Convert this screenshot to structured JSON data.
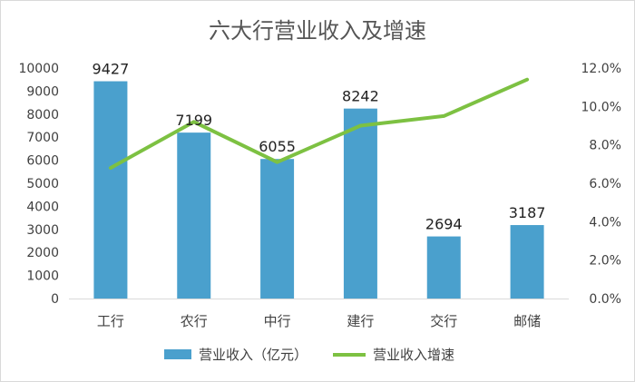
{
  "chart_data": {
    "type": "bar",
    "title": "六大行营业收入及增速",
    "categories": [
      "工行",
      "农行",
      "中行",
      "建行",
      "交行",
      "邮储"
    ],
    "series": [
      {
        "name": "营业收入（亿元）",
        "kind": "bar",
        "axis": "left",
        "color": "#4aa0cd",
        "values": [
          9427,
          7199,
          6055,
          8242,
          2694,
          3187
        ]
      },
      {
        "name": "营业收入增速",
        "kind": "line",
        "axis": "right",
        "color": "#7dc142",
        "values": [
          0.068,
          0.092,
          0.071,
          0.09,
          0.095,
          0.114
        ]
      }
    ],
    "y_left": {
      "min": 0,
      "max": 10000,
      "ticks": [
        "0",
        "1000",
        "2000",
        "3000",
        "4000",
        "5000",
        "6000",
        "7000",
        "8000",
        "9000",
        "10000"
      ]
    },
    "y_right": {
      "min": 0,
      "max": 0.12,
      "ticks": [
        "0.0%",
        "2.0%",
        "4.0%",
        "6.0%",
        "8.0%",
        "10.0%",
        "12.0%"
      ]
    },
    "data_labels": [
      "9427",
      "7199",
      "6055",
      "8242",
      "2694",
      "3187"
    ],
    "grid": false,
    "legend_position": "bottom"
  }
}
